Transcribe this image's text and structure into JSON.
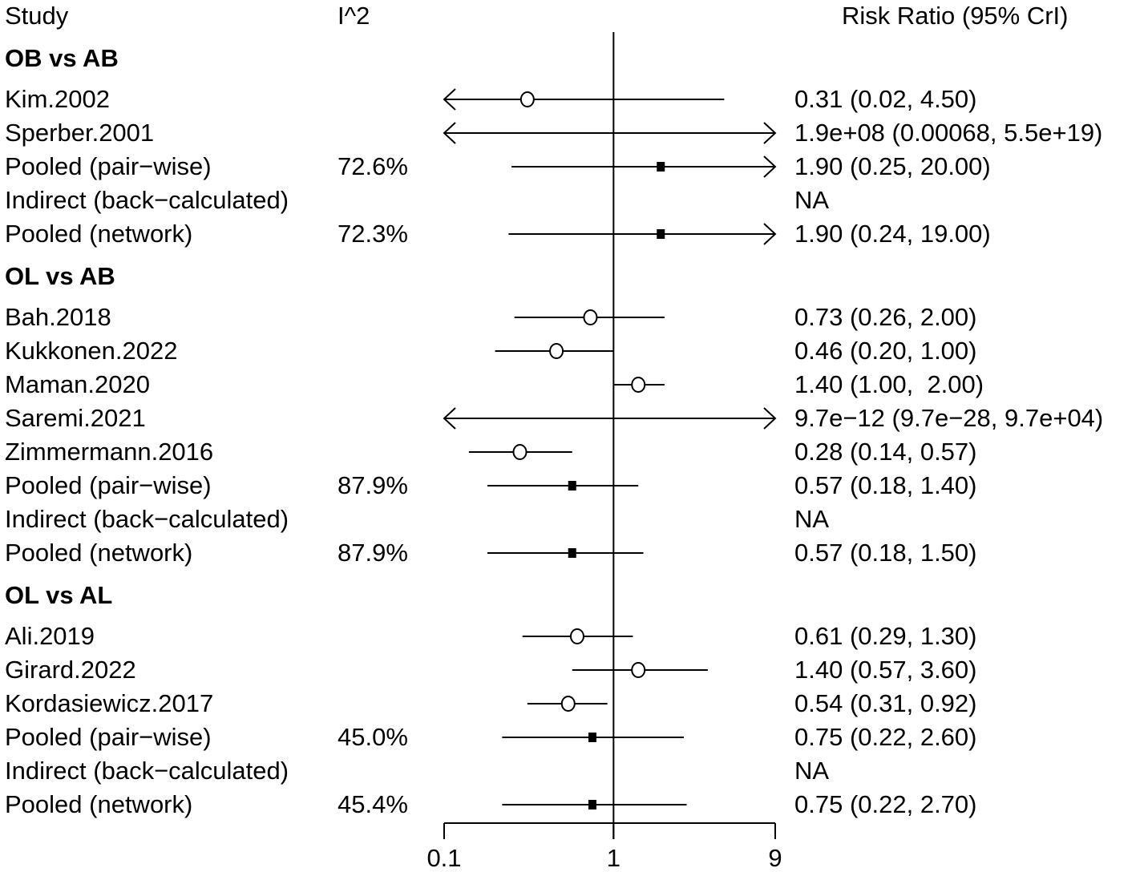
{
  "headers": {
    "study": "Study",
    "i2": "I^2",
    "rr": "Risk Ratio (95% CrI)"
  },
  "chart_data": {
    "type": "forest",
    "title": "",
    "xscale": "log",
    "xlim": [
      0.1,
      9
    ],
    "xticks": [
      0.1,
      1,
      9
    ],
    "xtick_labels": [
      "0.1",
      "1",
      "9"
    ],
    "reference_line": 1,
    "groups": [
      {
        "label": "OB vs AB",
        "rows": [
          {
            "study": "Kim.2002",
            "i2": "",
            "type": "study",
            "est": 0.31,
            "lo": 0.02,
            "hi": 4.5,
            "text": "0.31 (0.02, 4.50)"
          },
          {
            "study": "Sperber.2001",
            "i2": "",
            "type": "study",
            "est": 190000000,
            "lo": 0.00068,
            "hi": 5.5e+19,
            "text": "1.9e+08 (0.00068, 5.5e+19)"
          },
          {
            "study": "Pooled (pair−wise)",
            "i2": "72.6%",
            "type": "pooled",
            "est": 1.9,
            "lo": 0.25,
            "hi": 20.0,
            "text": "1.90 (0.25, 20.00)"
          },
          {
            "study": "Indirect (back−calculated)",
            "i2": "",
            "type": "na",
            "est": null,
            "lo": null,
            "hi": null,
            "text": "NA"
          },
          {
            "study": "Pooled (network)",
            "i2": "72.3%",
            "type": "pooled",
            "est": 1.9,
            "lo": 0.24,
            "hi": 19.0,
            "text": "1.90 (0.24, 19.00)"
          }
        ]
      },
      {
        "label": "OL vs AB",
        "rows": [
          {
            "study": "Bah.2018",
            "i2": "",
            "type": "study",
            "est": 0.73,
            "lo": 0.26,
            "hi": 2.0,
            "text": "0.73 (0.26, 2.00)"
          },
          {
            "study": "Kukkonen.2022",
            "i2": "",
            "type": "study",
            "est": 0.46,
            "lo": 0.2,
            "hi": 1.0,
            "text": "0.46 (0.20, 1.00)"
          },
          {
            "study": "Maman.2020",
            "i2": "",
            "type": "study",
            "est": 1.4,
            "lo": 1.0,
            "hi": 2.0,
            "text": "1.40 (1.00,  2.00)"
          },
          {
            "study": "Saremi.2021",
            "i2": "",
            "type": "study",
            "est": 9.7e-12,
            "lo": 9.7e-28,
            "hi": 97000,
            "text": "9.7e−12 (9.7e−28, 9.7e+04)"
          },
          {
            "study": "Zimmermann.2016",
            "i2": "",
            "type": "study",
            "est": 0.28,
            "lo": 0.14,
            "hi": 0.57,
            "text": "0.28 (0.14, 0.57)"
          },
          {
            "study": "Pooled (pair−wise)",
            "i2": "87.9%",
            "type": "pooled",
            "est": 0.57,
            "lo": 0.18,
            "hi": 1.4,
            "text": "0.57 (0.18, 1.40)"
          },
          {
            "study": "Indirect (back−calculated)",
            "i2": "",
            "type": "na",
            "est": null,
            "lo": null,
            "hi": null,
            "text": "NA"
          },
          {
            "study": "Pooled (network)",
            "i2": "87.9%",
            "type": "pooled",
            "est": 0.57,
            "lo": 0.18,
            "hi": 1.5,
            "text": "0.57 (0.18, 1.50)"
          }
        ]
      },
      {
        "label": "OL vs AL",
        "rows": [
          {
            "study": "Ali.2019",
            "i2": "",
            "type": "study",
            "est": 0.61,
            "lo": 0.29,
            "hi": 1.3,
            "text": "0.61 (0.29, 1.30)"
          },
          {
            "study": "Girard.2022",
            "i2": "",
            "type": "study",
            "est": 1.4,
            "lo": 0.57,
            "hi": 3.6,
            "text": "1.40 (0.57, 3.60)"
          },
          {
            "study": "Kordasiewicz.2017",
            "i2": "",
            "type": "study",
            "est": 0.54,
            "lo": 0.31,
            "hi": 0.92,
            "text": "0.54 (0.31, 0.92)"
          },
          {
            "study": "Pooled (pair−wise)",
            "i2": "45.0%",
            "type": "pooled",
            "est": 0.75,
            "lo": 0.22,
            "hi": 2.6,
            "text": "0.75 (0.22, 2.60)"
          },
          {
            "study": "Indirect (back−calculated)",
            "i2": "",
            "type": "na",
            "est": null,
            "lo": null,
            "hi": null,
            "text": "NA"
          },
          {
            "study": "Pooled (network)",
            "i2": "45.4%",
            "type": "pooled",
            "est": 0.75,
            "lo": 0.22,
            "hi": 2.7,
            "text": "0.75 (0.22, 2.70)"
          }
        ]
      }
    ]
  }
}
